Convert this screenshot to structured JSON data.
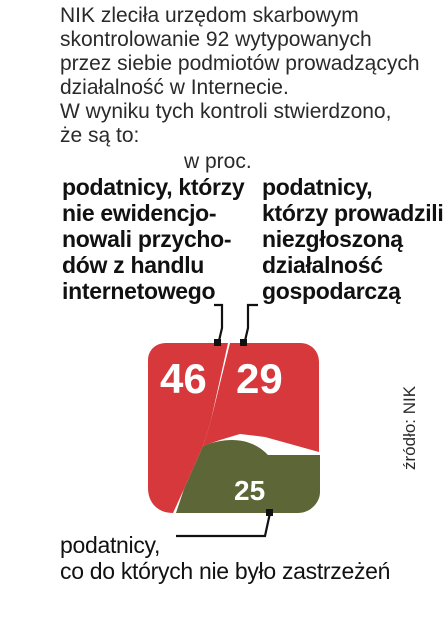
{
  "intro": {
    "lines": [
      "NIK zleciła urzędom skarbowym",
      "skontrolowanie 92 wytypowanych",
      "przez siebie podmiotów prowadzących",
      "działalność w Internecie.",
      "W wyniku tych kontroli stwierdzono,",
      "że są to:"
    ]
  },
  "source": "źródło: NIK",
  "chart_data": {
    "type": "pie",
    "unit": "w proc.",
    "colors": {
      "red": "#d6383c",
      "olive": "#5d6636"
    },
    "slices": [
      {
        "value": 46,
        "label": "46",
        "category": [
          "podatnicy, którzy",
          "nie ewidencjo-",
          "nowali przycho-",
          "dów z handlu",
          "internetowego"
        ],
        "color": "#d6383c"
      },
      {
        "value": 29,
        "label": "29",
        "category": [
          "podatnicy,",
          "którzy prowadzili",
          "niezgłoszoną",
          "działalność",
          "gospodarczą"
        ],
        "color": "#d6383c"
      },
      {
        "value": 25,
        "label": "25",
        "category": [
          "podatnicy,",
          "co do których nie było zastrzeżeń"
        ],
        "color": "#5d6636"
      }
    ]
  }
}
